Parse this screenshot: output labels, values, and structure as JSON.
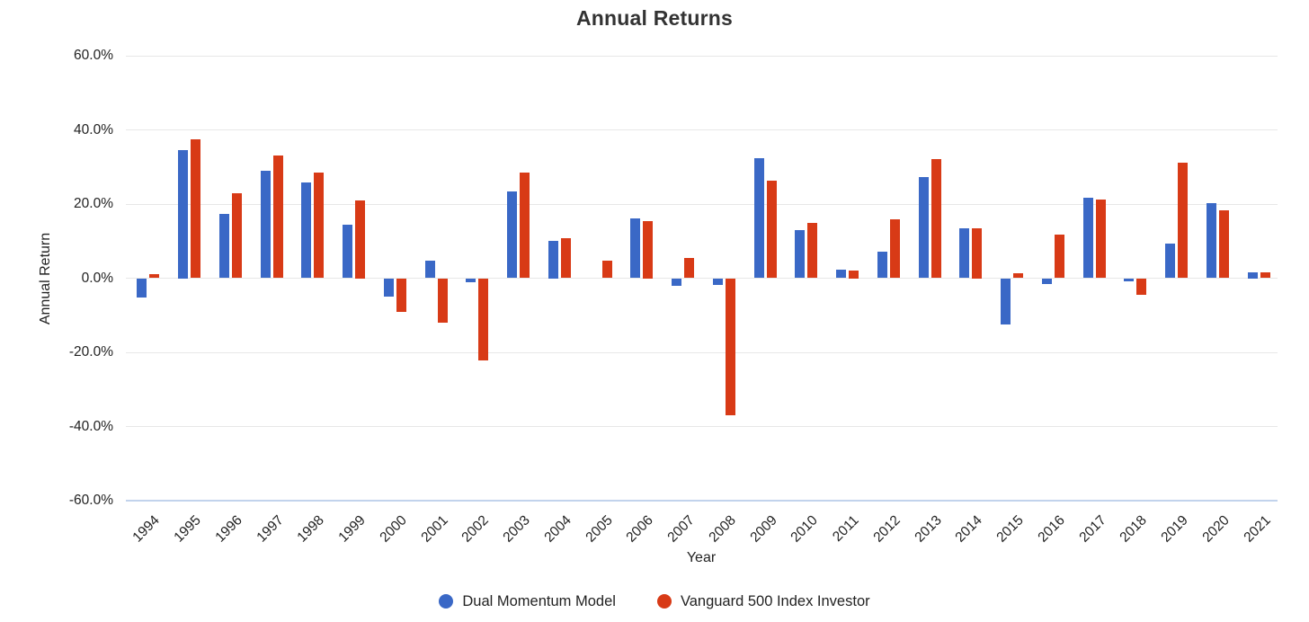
{
  "chart_data": {
    "type": "bar",
    "title": "Annual Returns",
    "xlabel": "Year",
    "ylabel": "Annual Return",
    "ylim": [
      -60,
      60
    ],
    "grid": true,
    "legend_position": "bottom",
    "y_ticks": [
      {
        "value": 60,
        "label": "60.0%"
      },
      {
        "value": 40,
        "label": "40.0%"
      },
      {
        "value": 20,
        "label": "20.0%"
      },
      {
        "value": 0,
        "label": "0.0%"
      },
      {
        "value": -20,
        "label": "-20.0%"
      },
      {
        "value": -40,
        "label": "-40.0%"
      },
      {
        "value": -60,
        "label": "-60.0%"
      }
    ],
    "categories": [
      "1994",
      "1995",
      "1996",
      "1997",
      "1998",
      "1999",
      "2000",
      "2001",
      "2002",
      "2003",
      "2004",
      "2005",
      "2006",
      "2007",
      "2008",
      "2009",
      "2010",
      "2011",
      "2012",
      "2013",
      "2014",
      "2015",
      "2016",
      "2017",
      "2018",
      "2019",
      "2020",
      "2021"
    ],
    "series": [
      {
        "name": "Dual Momentum Model",
        "color": "#3a68c6",
        "values": [
          -5.3,
          34.5,
          17.4,
          28.9,
          25.8,
          14.4,
          -4.9,
          4.8,
          -1.2,
          23.4,
          10.0,
          0.0,
          16.1,
          -2.0,
          -1.7,
          32.4,
          12.9,
          2.4,
          7.2,
          27.2,
          13.4,
          -12.4,
          -1.5,
          21.7,
          -0.8,
          9.4,
          20.2,
          1.5
        ]
      },
      {
        "name": "Vanguard 500 Index Investor",
        "color": "#d83a16",
        "values": [
          1.2,
          37.4,
          22.9,
          33.2,
          28.6,
          21.0,
          -9.0,
          -12.0,
          -22.2,
          28.4,
          10.7,
          4.8,
          15.5,
          5.4,
          -37.0,
          26.4,
          14.9,
          2.0,
          15.8,
          32.2,
          13.5,
          1.3,
          11.8,
          21.3,
          -4.6,
          31.1,
          18.3,
          1.6
        ]
      }
    ]
  }
}
